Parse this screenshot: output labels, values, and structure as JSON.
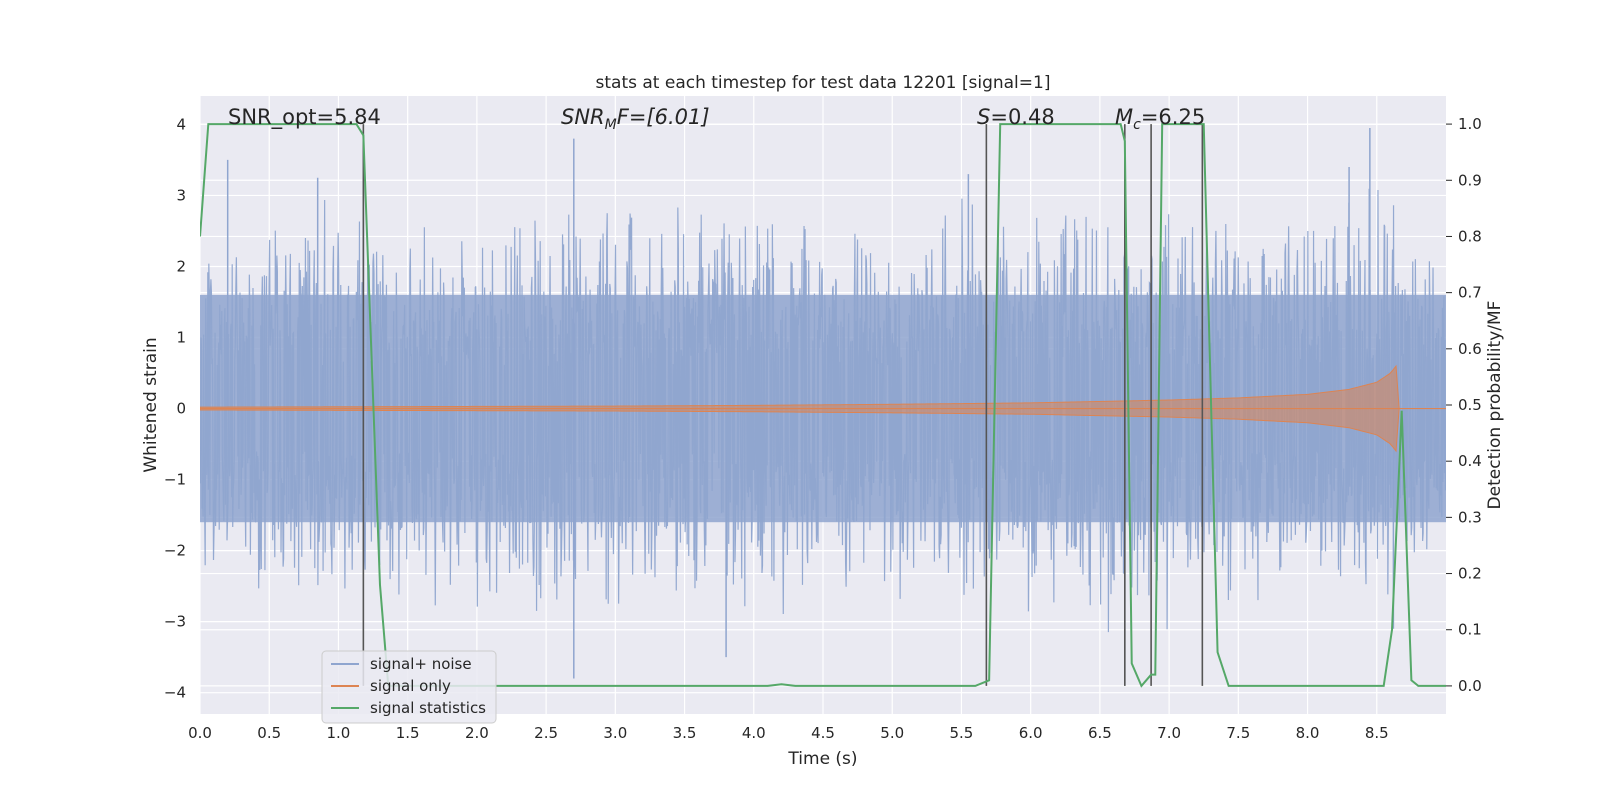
{
  "chart_data": {
    "type": "line",
    "title": "stats at each timestep for test data 12201 [signal=1]",
    "xlabel": "Time (s)",
    "ylabel": "Whitened strain",
    "ylabel_right": "Detection probability/MF",
    "xlim": [
      0.0,
      9.0
    ],
    "ylim": [
      -4.3,
      4.4
    ],
    "ylim_right": [
      -0.05,
      1.05
    ],
    "x_ticks": [
      0.0,
      0.5,
      1.0,
      1.5,
      2.0,
      2.5,
      3.0,
      3.5,
      4.0,
      4.5,
      5.0,
      5.5,
      6.0,
      6.5,
      7.0,
      7.5,
      8.0,
      8.5
    ],
    "x_tick_labels": [
      "0.0",
      "0.5",
      "1.0",
      "1.5",
      "2.0",
      "2.5",
      "3.0",
      "3.5",
      "4.0",
      "4.5",
      "5.0",
      "5.5",
      "6.0",
      "6.5",
      "7.0",
      "7.5",
      "8.0",
      "8.5"
    ],
    "y_ticks": [
      4,
      3,
      2,
      1,
      0,
      -1,
      -2,
      -3,
      -4
    ],
    "y_tick_labels": [
      "4",
      "3",
      "2",
      "1",
      "0",
      "−1",
      "−2",
      "−3",
      "−4"
    ],
    "y_right_ticks": [
      1.0,
      0.9,
      0.8,
      0.7,
      0.6,
      0.5,
      0.4,
      0.3,
      0.2,
      0.1,
      0.0
    ],
    "y_right_tick_labels": [
      "1.0",
      "0.9",
      "0.8",
      "0.7",
      "0.6",
      "0.5",
      "0.4",
      "0.3",
      "0.2",
      "0.1",
      "0.0"
    ],
    "grid": true,
    "legend_position": "lower-left",
    "annotations": {
      "snr_opt": "SNR_opt=5.84",
      "snr_mf_base": "SNR",
      "snr_mf_sub": "M",
      "snr_mf_rest": "F=[6.01]",
      "s_var": "S",
      "s_rest": "=0.48",
      "mc_base": "M",
      "mc_sub": "c",
      "mc_rest": "=6.25"
    },
    "noise_envelope": {
      "description_free": true,
      "t": [
        0.0,
        0.5,
        1.0,
        1.5,
        2.0,
        2.5,
        3.0,
        3.5,
        4.0,
        4.5,
        5.0,
        5.5,
        6.0,
        6.5,
        7.0,
        7.5,
        8.0,
        8.5,
        9.0
      ],
      "upper": [
        2.5,
        2.6,
        3.3,
        2.6,
        2.7,
        3.0,
        3.0,
        2.9,
        3.3,
        2.8,
        2.9,
        3.1,
        3.0,
        3.0,
        2.9,
        3.0,
        3.1,
        3.4,
        2.2
      ],
      "lower": [
        -2.6,
        -2.8,
        -3.0,
        -2.9,
        -2.9,
        -3.8,
        -3.0,
        -3.3,
        -3.4,
        -2.7,
        -2.8,
        -3.0,
        -3.0,
        -3.5,
        -3.2,
        -2.9,
        -2.8,
        -3.0,
        -2.3
      ]
    },
    "series": [
      {
        "name": "signal+ noise",
        "color": "#8fa5cf",
        "kind": "dense-noise"
      },
      {
        "name": "signal only",
        "color": "#dd8452",
        "kind": "chirp",
        "t": [
          0.0,
          1.0,
          2.0,
          3.0,
          4.0,
          5.0,
          6.0,
          6.5,
          7.0,
          7.5,
          8.0,
          8.3,
          8.5,
          8.6,
          8.64,
          8.66,
          9.0
        ],
        "amplitude": [
          0.02,
          0.025,
          0.03,
          0.035,
          0.045,
          0.06,
          0.08,
          0.1,
          0.12,
          0.15,
          0.2,
          0.27,
          0.37,
          0.5,
          0.6,
          0.0,
          0.0
        ]
      },
      {
        "name": "signal statistics",
        "color": "#55a868",
        "kind": "probability",
        "x": [
          0.0,
          0.06,
          0.1,
          1.0,
          1.13,
          1.18,
          1.3,
          1.36,
          4.1,
          4.2,
          4.3,
          5.6,
          5.7,
          5.78,
          6.3,
          6.65,
          6.68,
          6.73,
          6.8,
          6.87,
          6.9,
          6.95,
          7.25,
          7.35,
          7.43,
          7.5,
          8.5,
          8.55,
          8.61,
          8.68,
          8.75,
          8.8,
          9.0
        ],
        "y": [
          0.8,
          1.0,
          1.0,
          1.0,
          1.0,
          0.98,
          0.18,
          0.0,
          0.0,
          0.003,
          0.0,
          0.0,
          0.01,
          1.0,
          1.0,
          1.0,
          0.97,
          0.04,
          0.0,
          0.02,
          0.02,
          1.0,
          1.0,
          0.06,
          0.0,
          0.0,
          0.0,
          0.0,
          0.1,
          0.49,
          0.01,
          0.0,
          0.0
        ]
      }
    ],
    "vertical_markers": [
      1.18,
      5.68,
      6.68,
      6.87,
      7.24
    ]
  }
}
